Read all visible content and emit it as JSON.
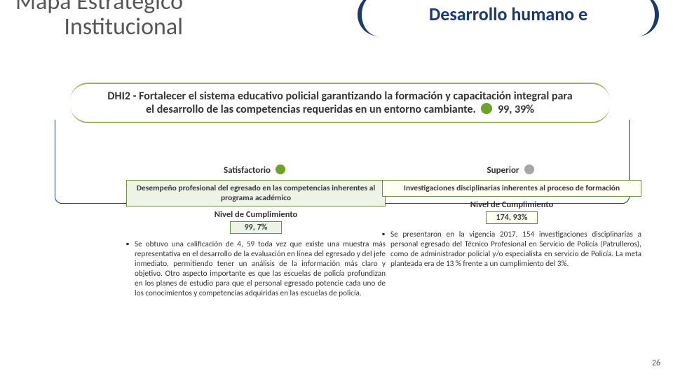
{
  "colors": {
    "accent_navy": "#1b3a6e",
    "accent_green": "#6b8e4e",
    "pill_border": "#9db060",
    "box_fill_left": "#edf4e6",
    "box_fill_right": "#fffef2",
    "dot_green": "#6ea22a",
    "dot_gray": "#a6a6a6",
    "text_gray": "#565656"
  },
  "header": {
    "title_left_line1": "Mapa Estratégico",
    "title_left_line2": "Institucional",
    "pill_right": "Desarrollo humano e"
  },
  "main": {
    "label": "DHI2 - Fortalecer el sistema educativo policial garantizando la formación y capacitación integral para el desarrollo de las competencias requeridas en un entorno cambiante.",
    "pct": "99, 39%",
    "dot_color": "#6ea22a"
  },
  "left": {
    "status_label": "Satisfactorio",
    "status_dot": "#6ea22a",
    "indicator": "Desempeño profesional del egresado en las competencias inherentes al programa académico",
    "level_lbl": "Nivel de Cumplimiento",
    "pct": "99, 7%",
    "bullet": "Se obtuvo una calificación de 4, 59 toda vez que existe una muestra más representativa en el desarrollo de la evaluación en línea del egresado y del jefe inmediato, permitiendo tener un análisis de la información más claro y objetivo. Otro aspecto importante es que las escuelas de policía profundizan en los planes de estudio para que el personal egresado potencie cada uno de los conocimientos y competencias adquiridas en las escuelas de policía."
  },
  "right": {
    "status_label": "Superior",
    "status_dot": "#a6a6a6",
    "indicator": "Investigaciones disciplinarias inherentes al proceso de formación",
    "level_lbl": "Nivel de Cumplimiento",
    "pct": "174, 93%",
    "bullet": "Se presentaron en la vigencia 2017, 154 investigaciones disciplinarias a personal egresado del Técnico Profesional en Servicio de Policía (Patrulleros), como de administrador policial y/o especialista en servicio de Policía. La meta planteada era de 13 % frente a un cumplimiento del 3%."
  },
  "page": "26"
}
